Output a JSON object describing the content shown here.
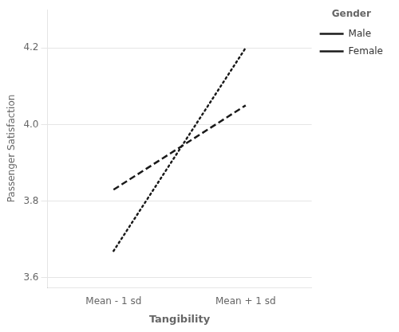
{
  "chart_data": {
    "type": "line",
    "categories": [
      "Mean - 1 sd",
      "Mean + 1 sd"
    ],
    "series": [
      {
        "name": "Male",
        "color": "#1a1a1a",
        "line_style": "dotted",
        "values": [
          3.67,
          4.2
        ]
      },
      {
        "name": "Female",
        "color": "#1a1a1a",
        "line_style": "dashed",
        "values": [
          3.83,
          4.05
        ]
      }
    ],
    "xlabel": "Tangibility",
    "ylabel": "Passenger Satisfaction",
    "legend_title": "Gender",
    "legend": "right",
    "ylim": [
      3.575,
      4.3
    ],
    "yticks": [
      3.6,
      3.8,
      {
        "value": 4.0,
        "label": "4.0"
      },
      4.2
    ],
    "grid": true
  }
}
